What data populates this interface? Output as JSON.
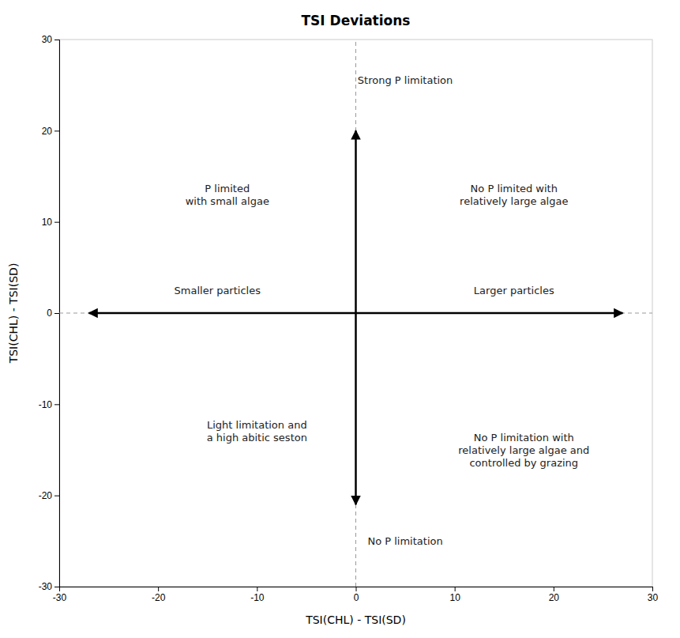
{
  "chart_data": {
    "type": "quadrant",
    "title": "TSI  Deviations",
    "xlabel": "TSI(CHL) - TSI(SD)",
    "ylabel": "TSI(CHL)  -  TSI(SD)",
    "xlim": [
      -30,
      30
    ],
    "ylim": [
      -30,
      30
    ],
    "xticks": [
      -30,
      -20,
      -10,
      0,
      10,
      20,
      30
    ],
    "yticks": [
      -30,
      -20,
      -10,
      0,
      10,
      20,
      30
    ],
    "hlines": [
      0
    ],
    "vlines": [
      0
    ],
    "arrows": [
      {
        "x": [
          0,
          0
        ],
        "y": [
          -21,
          20
        ]
      },
      {
        "x": [
          27,
          -27
        ],
        "y": [
          0,
          0
        ]
      }
    ],
    "annotations": [
      {
        "text": "Strong P limitation",
        "x": 5,
        "y": 25.5
      },
      {
        "text": "No P limitation",
        "x": 5,
        "y": -25
      },
      {
        "text": "Smaller particles",
        "x": -14,
        "y": 2.5
      },
      {
        "text": "Larger particles",
        "x": 16,
        "y": 2.5
      },
      {
        "text": "P limited\nwith small algae",
        "x": -13,
        "y": 13
      },
      {
        "text": "No P limited with\nrelatively large algae",
        "x": 16,
        "y": 13
      },
      {
        "text": "Light limitation and\na high abitic seston",
        "x": -10,
        "y": -13
      },
      {
        "text": "No P limitation with\nrelatively large algae and\ncontrolled by grazing",
        "x": 17,
        "y": -15
      }
    ]
  }
}
